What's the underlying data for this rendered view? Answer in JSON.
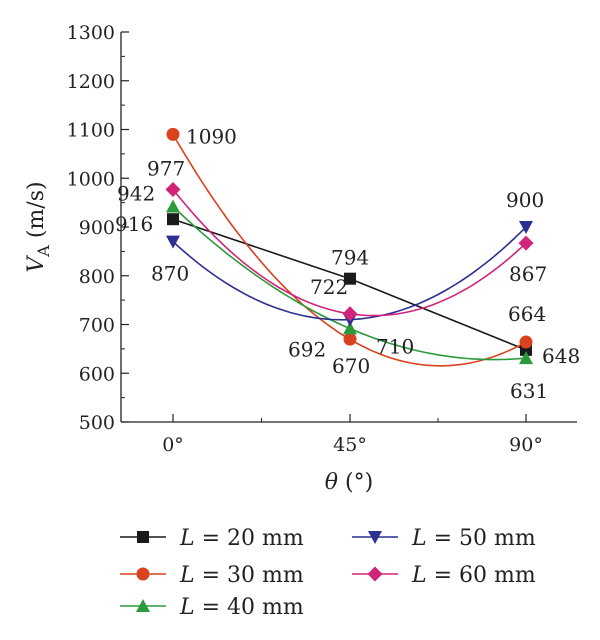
{
  "chart_data": {
    "type": "line",
    "categories": [
      "0°",
      "45°",
      "90°"
    ],
    "x": [
      0,
      45,
      90
    ],
    "ylim": [
      500,
      1300
    ],
    "yticks": [
      500,
      600,
      700,
      800,
      900,
      1000,
      1100,
      1200,
      1300
    ],
    "ylabel": {
      "main": "V",
      "sub": "A",
      "unit": " (m/s)"
    },
    "xlabel": {
      "main": "θ",
      "unit": " (°)"
    },
    "grid": false,
    "legend_position": "bottom",
    "series": [
      {
        "name": "L = 20 mm",
        "var": "L",
        "rest": " = 20 mm",
        "color": "#1a1a1a",
        "marker": "square",
        "values": [
          916,
          794,
          648
        ],
        "labels": [
          "916",
          "794",
          "648"
        ]
      },
      {
        "name": "L = 30 mm",
        "var": "L",
        "rest": " = 30 mm",
        "color": "#d9421c",
        "marker": "circle",
        "values": [
          1090,
          670,
          664
        ],
        "labels": [
          "1090",
          "670",
          "664"
        ]
      },
      {
        "name": "L = 40 mm",
        "var": "L",
        "rest": " = 40 mm",
        "color": "#2a9a3a",
        "marker": "triangle-up",
        "values": [
          942,
          692,
          631
        ],
        "labels": [
          "942",
          "692",
          "631"
        ]
      },
      {
        "name": "L = 50 mm",
        "var": "L",
        "rest": " = 50 mm",
        "color": "#2b2f8f",
        "marker": "triangle-down",
        "values": [
          870,
          710,
          900
        ],
        "labels": [
          "870",
          "710",
          "900"
        ]
      },
      {
        "name": "L = 60 mm",
        "var": "L",
        "rest": " = 60 mm",
        "color": "#d0237a",
        "marker": "diamond",
        "values": [
          977,
          722,
          867
        ],
        "labels": [
          "977",
          "722",
          "867"
        ]
      }
    ]
  }
}
